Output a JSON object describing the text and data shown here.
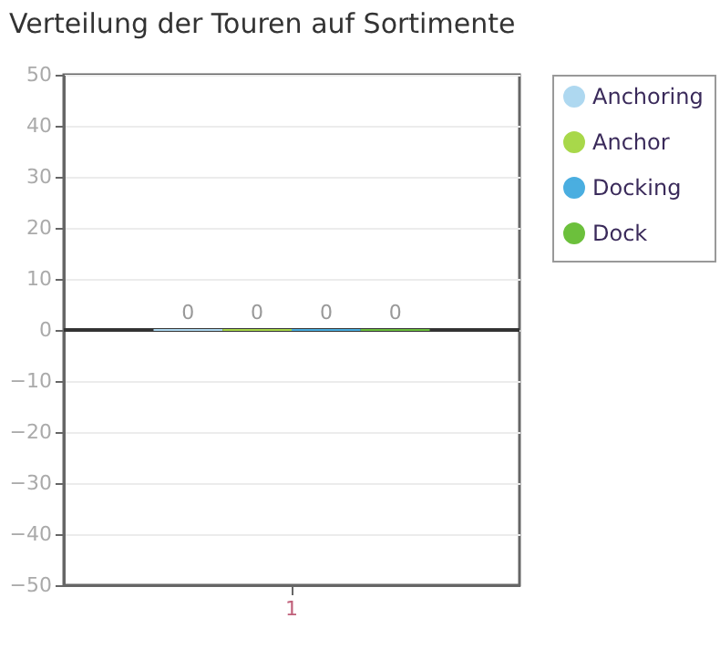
{
  "chart_data": {
    "type": "bar",
    "title": "Verteilung der Touren auf Sortimente",
    "categories": [
      "1"
    ],
    "series": [
      {
        "name": "Anchoring",
        "color": "#aed8f0",
        "values": [
          0
        ]
      },
      {
        "name": "Anchor",
        "color": "#a8d84a",
        "values": [
          0
        ]
      },
      {
        "name": "Docking",
        "color": "#4aaee0",
        "values": [
          0
        ]
      },
      {
        "name": "Dock",
        "color": "#6cc03c",
        "values": [
          0
        ]
      }
    ],
    "ylim": [
      -50,
      50
    ],
    "yticks": [
      -50,
      -40,
      -30,
      -20,
      -10,
      0,
      10,
      20,
      30,
      40,
      50
    ],
    "data_labels": true,
    "grid": "y",
    "legend": "right",
    "ref_lines": [
      {
        "axis": "y",
        "value": 0
      }
    ]
  }
}
